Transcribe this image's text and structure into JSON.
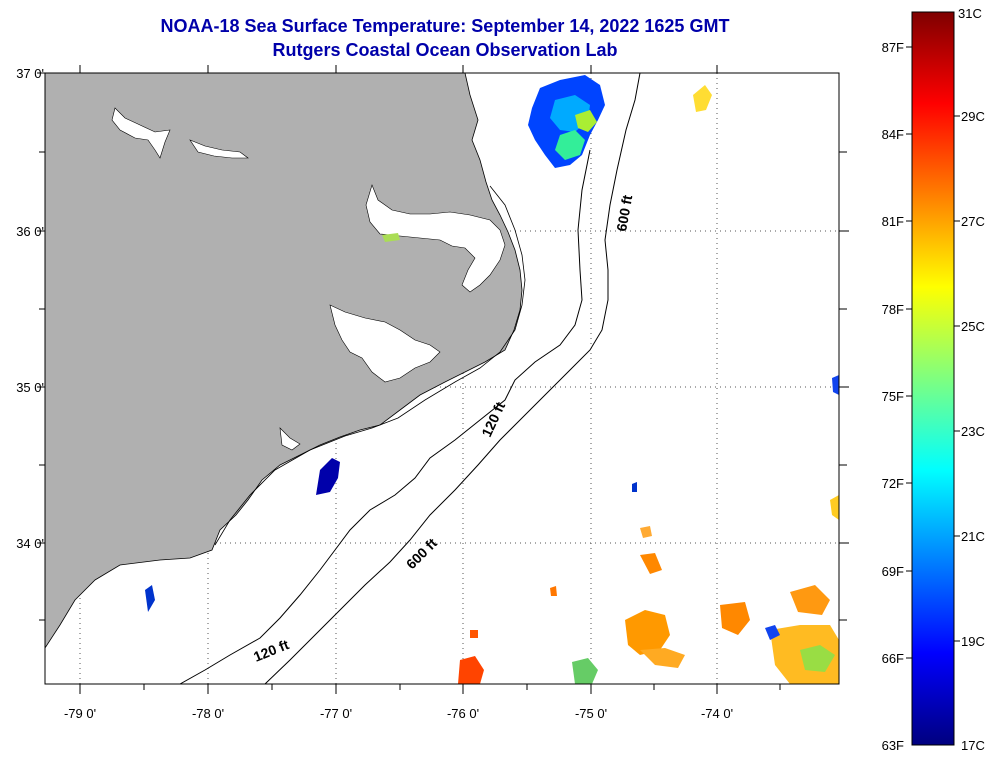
{
  "title": {
    "line1": "NOAA-18 Sea Surface Temperature:  September 14, 2022 1625 GMT",
    "line2": "Rutgers Coastal Ocean Observation Lab",
    "color": "#0000aa"
  },
  "map": {
    "land_color": "#b0b0b0",
    "lon_ticks": [
      "-79 0'",
      "-78 0'",
      "-77 0'",
      "-76 0'",
      "-75 0'",
      "-74 0'"
    ],
    "lat_ticks": [
      "37 0'",
      "36 0'",
      "35 0'",
      "34 0'"
    ],
    "contour_labels": {
      "c600_north": "600 ft",
      "c120_mid": "120 ft",
      "c600_mid": "600 ft",
      "c120_south": "120 ft"
    }
  },
  "colorbar": {
    "fahrenheit": [
      "87F",
      "84F",
      "81F",
      "78F",
      "75F",
      "72F",
      "69F",
      "66F",
      "63F"
    ],
    "celsius": [
      "31C",
      "29C",
      "27C",
      "25C",
      "23C",
      "21C",
      "19C",
      "17C"
    ],
    "gradient": [
      "#00007f",
      "#0000ff",
      "#007fff",
      "#00ffff",
      "#7fff7f",
      "#ffff00",
      "#ff7f00",
      "#ff0000",
      "#7f0000"
    ]
  }
}
